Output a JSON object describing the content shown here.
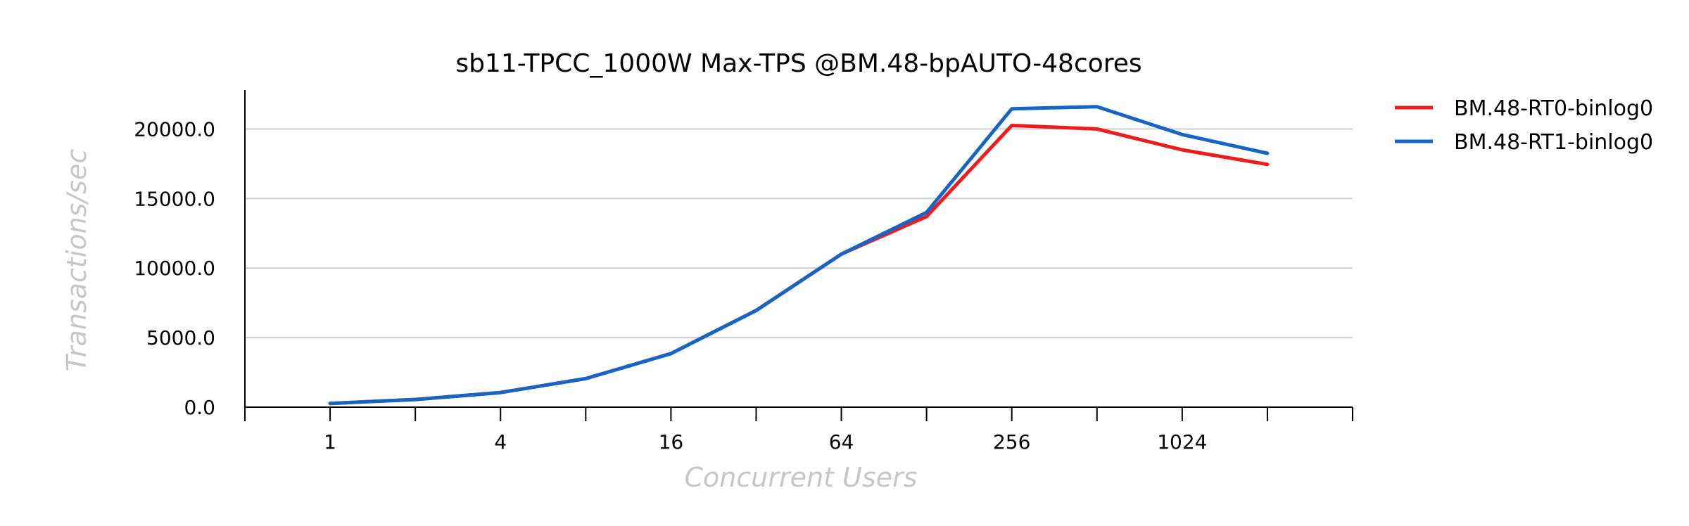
{
  "chart_data": {
    "type": "line",
    "title": "sb11-TPCC_1000W Max-TPS @BM.48-bpAUTO-48cores",
    "xlabel": "Concurrent Users",
    "ylabel": "Transactions/sec",
    "x": [
      1,
      2,
      4,
      8,
      16,
      32,
      64,
      128,
      256,
      512,
      1024,
      2048
    ],
    "x_tick_labels": [
      "1",
      "4",
      "16",
      "64",
      "256",
      "1024"
    ],
    "x_tick_values": [
      1,
      4,
      16,
      64,
      256,
      1024
    ],
    "x_scale": "log2",
    "xlim": [
      0.5,
      4096
    ],
    "ylim": [
      0,
      22800
    ],
    "y_ticks": [
      0,
      5000,
      10000,
      15000,
      20000
    ],
    "y_tick_labels": [
      "0.0",
      "5000.0",
      "10000.0",
      "15000.0",
      "20000.0"
    ],
    "grid": "horizontal",
    "legend_position": "right",
    "series": [
      {
        "name": "BM.48-RT0-binlog0",
        "color": "#ee1c1c",
        "values": [
          270,
          550,
          1050,
          2050,
          3850,
          6950,
          11000,
          13700,
          20250,
          20000,
          18500,
          17450
        ]
      },
      {
        "name": "BM.48-RT1-binlog0",
        "color": "#1565c8",
        "values": [
          270,
          550,
          1050,
          2050,
          3850,
          6950,
          11000,
          14000,
          21450,
          21600,
          19600,
          18250
        ]
      }
    ]
  }
}
